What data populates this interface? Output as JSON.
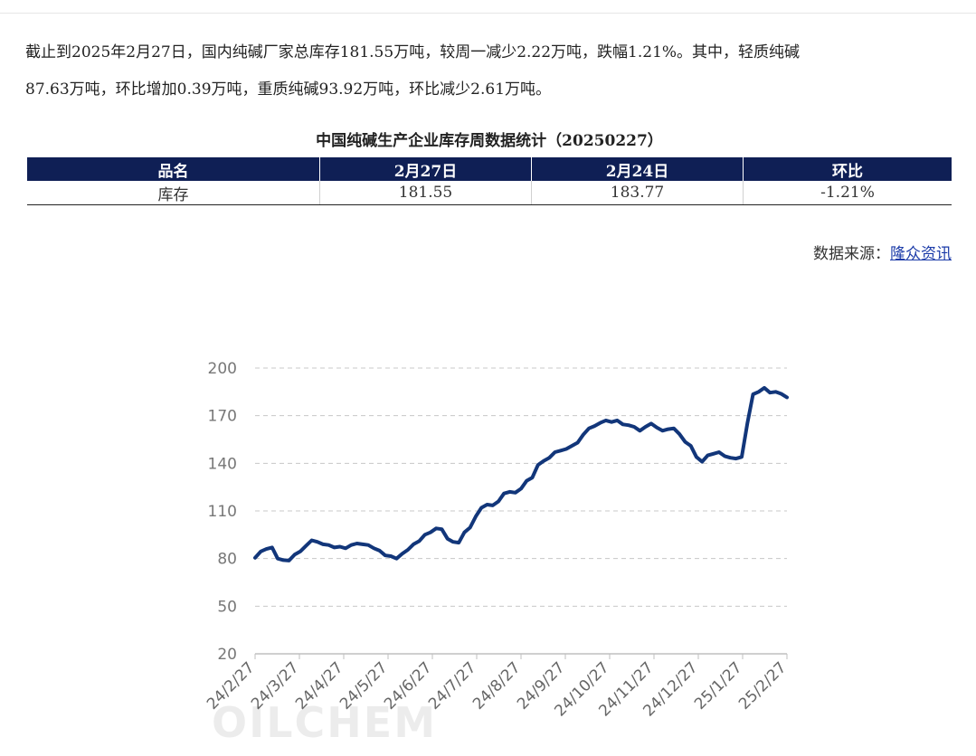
{
  "paragraph": {
    "line1": "截止到2025年2月27日，国内纯碱厂家总库存181.55万吨，较周一减少2.22万吨，跌幅1.21%。其中，轻质纯碱",
    "line2": "87.63万吨，环比增加0.39万吨，重质纯碱93.92万吨，环比减少2.61万吨。"
  },
  "table": {
    "title": "中国纯碱生产企业库存周数据统计（20250227）",
    "headers": [
      "品名",
      "2月27日",
      "2月24日",
      "环比"
    ],
    "rows": [
      [
        "库存",
        "181.55",
        "183.77",
        "-1.21%"
      ]
    ]
  },
  "source": {
    "label": "数据来源：",
    "link": "隆众资讯"
  },
  "watermark": "OILCHEM",
  "colors": {
    "header_bg": "#0f1f55",
    "line": "#12367a",
    "link": "#1a3aa8"
  },
  "chart_data": {
    "type": "line",
    "title": "",
    "xlabel": "",
    "ylabel": "",
    "ylim": [
      20,
      200
    ],
    "yticks": [
      20,
      50,
      80,
      110,
      140,
      170,
      200
    ],
    "grid": true,
    "x_tick_labels": [
      "24/2/27",
      "24/3/27",
      "24/4/27",
      "24/5/27",
      "24/6/27",
      "24/7/27",
      "24/8/27",
      "24/9/27",
      "24/10/27",
      "24/11/27",
      "24/12/27",
      "25/1/27",
      "25/2/27"
    ],
    "series": [
      {
        "name": "",
        "values": [
          80.5,
          84.5,
          86,
          87,
          80,
          79,
          78.7,
          82.5,
          84.5,
          88,
          91.5,
          90.5,
          89,
          88.5,
          87,
          87.5,
          86.5,
          88.5,
          89.5,
          89,
          88.5,
          86.5,
          85,
          82,
          81.5,
          80,
          83,
          85.5,
          89,
          91,
          95,
          96.5,
          99,
          98.5,
          92.5,
          90.5,
          90,
          96.5,
          99.5,
          106.5,
          112,
          114,
          113.5,
          116,
          121,
          122,
          121.5,
          124,
          129,
          131,
          139,
          141.5,
          143.5,
          147,
          148,
          149,
          151,
          153,
          158,
          162,
          163.5,
          165.5,
          167,
          166,
          167,
          164.5,
          164,
          163,
          160.5,
          163,
          165,
          162.5,
          160.5,
          161.5,
          162,
          158.5,
          153.5,
          151,
          144,
          141,
          145,
          146,
          147,
          144.5,
          143.5,
          143,
          144,
          165,
          183.5,
          185,
          187.5,
          184.5,
          185,
          183.77,
          181.55
        ]
      }
    ]
  }
}
